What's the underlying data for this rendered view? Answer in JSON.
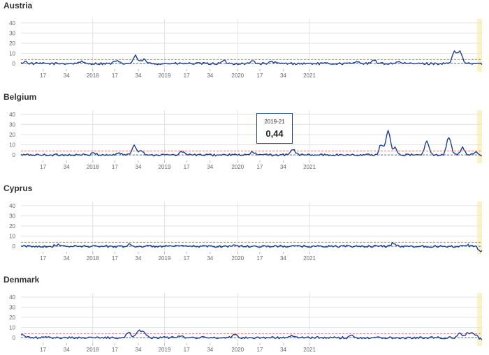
{
  "colors": {
    "series": "#1f3f8f",
    "baseline": "#1f3f8f",
    "threshold": "#e8736d",
    "grid": "#e3e3e3",
    "highlight": "#fbf3c4"
  },
  "tooltip": {
    "week": "2019-21",
    "value": "0,44"
  },
  "chart_data": [
    {
      "type": "line",
      "title": "Austria",
      "x_ticks": [
        "17",
        "34",
        "2018",
        "17",
        "34",
        "2019",
        "17",
        "34",
        "2020",
        "17",
        "34",
        "2021"
      ],
      "y_ticks": [
        "40",
        "30",
        "20",
        "10",
        "0"
      ],
      "ylim": [
        -4,
        44
      ],
      "threshold": 4,
      "grid": true,
      "highlighted_weeks": "last 2 weeks",
      "peaks": [
        [
          3,
          2
        ],
        [
          43,
          2
        ],
        [
          69,
          2.5
        ],
        [
          83,
          7.5
        ],
        [
          89,
          4
        ],
        [
          147,
          2.5
        ],
        [
          168,
          2.5
        ],
        [
          182,
          2
        ],
        [
          244,
          2.5
        ],
        [
          256,
          3
        ],
        [
          273,
          2
        ],
        [
          314,
          11
        ],
        [
          318,
          12
        ]
      ],
      "series": [
        {
          "values_by_week": "weekly z-score from 2017 week 1 to 2021 week 14"
        }
      ]
    },
    {
      "type": "line",
      "title": "Belgium",
      "x_ticks": [
        "17",
        "34",
        "2018",
        "17",
        "34",
        "2019",
        "17",
        "34",
        "2020",
        "17",
        "34",
        "2021"
      ],
      "y_ticks": [
        "40",
        "30",
        "20",
        "10",
        "0"
      ],
      "ylim": [
        -4,
        44
      ],
      "threshold": 4,
      "grid": true,
      "peaks": [
        [
          53,
          2
        ],
        [
          71,
          2
        ],
        [
          82,
          9.5
        ],
        [
          87,
          5
        ],
        [
          117,
          3.5
        ],
        [
          168,
          3
        ],
        [
          197,
          6
        ],
        [
          261,
          10
        ],
        [
          266,
          24
        ],
        [
          271,
          7
        ],
        [
          294,
          13
        ],
        [
          310,
          18
        ],
        [
          320,
          7
        ],
        [
          329,
          2.5
        ]
      ],
      "series": [
        {
          "values_by_week": "weekly z-score"
        }
      ]
    },
    {
      "type": "line",
      "title": "Cyprus",
      "x_ticks": [
        "17",
        "34",
        "2018",
        "17",
        "34",
        "2019",
        "17",
        "34",
        "2020",
        "17",
        "34",
        "2021"
      ],
      "y_ticks": [
        "40",
        "30",
        "20",
        "10",
        "0"
      ],
      "ylim": [
        -4,
        44
      ],
      "threshold": 4,
      "grid": true,
      "peaks": [
        [
          26,
          1.5
        ],
        [
          78,
          1.5
        ],
        [
          155,
          1.5
        ],
        [
          270,
          3.5
        ],
        [
          323,
          1.5
        ],
        [
          333,
          -6
        ]
      ],
      "series": [
        {
          "values_by_week": "weekly z-score"
        }
      ]
    },
    {
      "type": "line",
      "title": "Denmark",
      "x_ticks": [
        "17",
        "34",
        "2018",
        "17",
        "34",
        "2019",
        "17",
        "34",
        "2020",
        "17",
        "34",
        "2021"
      ],
      "y_ticks": [
        "40",
        "30",
        "20",
        "10",
        "0"
      ],
      "ylim": [
        -4,
        44
      ],
      "threshold": 4,
      "grid": true,
      "peaks": [
        [
          1,
          3
        ],
        [
          78,
          5
        ],
        [
          85,
          7.5
        ],
        [
          89,
          6
        ],
        [
          116,
          2.5
        ],
        [
          155,
          4
        ],
        [
          196,
          2
        ],
        [
          240,
          2
        ],
        [
          318,
          4
        ],
        [
          324,
          5
        ],
        [
          328,
          4
        ],
        [
          334,
          -2
        ]
      ],
      "series": [
        {
          "values_by_week": "weekly z-score"
        }
      ]
    }
  ]
}
